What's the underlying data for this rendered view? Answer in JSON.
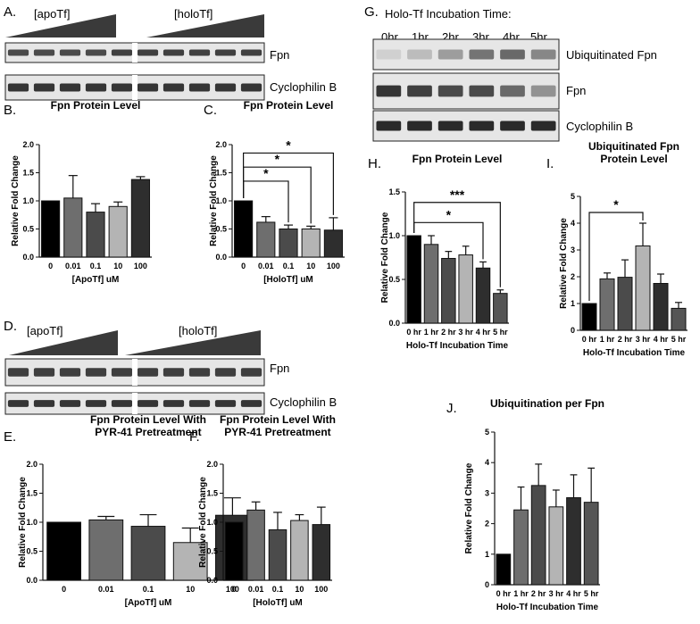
{
  "colors": {
    "bars": [
      "#000000",
      "#6e6e6e",
      "#4b4b4b",
      "#b4b4b4",
      "#2e2e2e",
      "#555555"
    ],
    "blot_bg": "#e6e6e6",
    "band": "#151515"
  },
  "blots": {
    "A": {
      "panel": "A.",
      "groups": [
        "[apoTf]",
        "[holoTf]"
      ],
      "rows": [
        {
          "label": "Fpn",
          "intensity": [
            0.75,
            0.75,
            0.75,
            0.75,
            0.8,
            0.8,
            0.8,
            0.8,
            0.8,
            0.8
          ]
        },
        {
          "label": "Cyclophilin B",
          "intensity": [
            0.85,
            0.85,
            0.85,
            0.85,
            0.85,
            0.85,
            0.85,
            0.85,
            0.85,
            0.85
          ]
        }
      ]
    },
    "D": {
      "panel": "D.",
      "groups": [
        "[apoTf]",
        "[holoTf]"
      ],
      "rows": [
        {
          "label": "Fpn",
          "intensity": [
            0.8,
            0.8,
            0.8,
            0.8,
            0.8,
            0.8,
            0.8,
            0.8,
            0.8,
            0.8
          ]
        },
        {
          "label": "Cyclophilin B",
          "intensity": [
            0.85,
            0.85,
            0.85,
            0.85,
            0.85,
            0.85,
            0.85,
            0.85,
            0.85,
            0.85
          ]
        }
      ]
    },
    "G": {
      "panel": "G.",
      "title": "Holo-Tf Incubation Time:",
      "lanes": [
        "0hr",
        "1hr",
        "2hr",
        "3hr",
        "4hr",
        "5hr"
      ],
      "rows": [
        {
          "label": "Ubiquitinated Fpn",
          "intensity": [
            0.1,
            0.2,
            0.35,
            0.55,
            0.6,
            0.45
          ]
        },
        {
          "label": "Fpn",
          "intensity": [
            0.85,
            0.8,
            0.75,
            0.75,
            0.6,
            0.4
          ]
        },
        {
          "label": "Cyclophilin B",
          "intensity": [
            0.9,
            0.9,
            0.9,
            0.9,
            0.9,
            0.9
          ]
        }
      ]
    }
  },
  "chart_data": [
    {
      "id": "B",
      "panel": "B.",
      "type": "bar",
      "title": [
        "Fpn Protein Level"
      ],
      "xlabel": [
        "[ApoTf] uM"
      ],
      "ylabel": "Relative Fold Change",
      "categories": [
        "0",
        "0.01",
        "0.1",
        "10",
        "100"
      ],
      "values": [
        1.0,
        1.05,
        0.8,
        0.9,
        1.38
      ],
      "errors": [
        0,
        0.4,
        0.15,
        0.08,
        0.05
      ],
      "ylim": [
        0,
        2.0
      ],
      "yticks": [
        "0.0",
        "0.5",
        "1.0",
        "1.5",
        "2.0"
      ],
      "sig": []
    },
    {
      "id": "C",
      "panel": "C.",
      "type": "bar",
      "title": [
        "Fpn Protein Level"
      ],
      "xlabel": [
        "[HoloTf] uM"
      ],
      "ylabel": "Relative Fold Change",
      "categories": [
        "0",
        "0.01",
        "0.1",
        "10",
        "100"
      ],
      "values": [
        1.0,
        0.62,
        0.5,
        0.5,
        0.48
      ],
      "errors": [
        0,
        0.1,
        0.07,
        0.05,
        0.22
      ],
      "ylim": [
        0,
        2.0
      ],
      "yticks": [
        "0.0",
        "0.5",
        "1.0",
        "1.5",
        "2.0"
      ],
      "sig": [
        {
          "from": 0,
          "to": 2,
          "y": 1.35,
          "label": "*"
        },
        {
          "from": 0,
          "to": 3,
          "y": 1.6,
          "label": "*"
        },
        {
          "from": 0,
          "to": 4,
          "y": 1.85,
          "label": "*"
        }
      ]
    },
    {
      "id": "E",
      "panel": "E.",
      "type": "bar",
      "title": [
        "Fpn Protein Level With",
        "PYR-41 Pretreatment"
      ],
      "xlabel": [
        "[ApoTf] uM"
      ],
      "ylabel": "Relative Fold Change",
      "categories": [
        "0",
        "0.01",
        "0.1",
        "10",
        "100"
      ],
      "values": [
        1.0,
        1.04,
        0.93,
        0.65,
        1.12
      ],
      "errors": [
        0,
        0.06,
        0.2,
        0.25,
        0.3
      ],
      "ylim": [
        0,
        2.0
      ],
      "yticks": [
        "0.0",
        "0.5",
        "1.0",
        "1.5",
        "2.0"
      ],
      "sig": []
    },
    {
      "id": "F",
      "panel": "F.",
      "type": "bar",
      "title": [
        "Fpn Protein Level With",
        "PYR-41 Pretreatment"
      ],
      "xlabel": [
        "[HoloTf] uM"
      ],
      "ylabel": "Relative Fold Change",
      "categories": [
        "0",
        "0.01",
        "0.1",
        "10",
        "100"
      ],
      "values": [
        1.0,
        1.21,
        0.87,
        1.03,
        0.96
      ],
      "errors": [
        0,
        0.14,
        0.3,
        0.1,
        0.3
      ],
      "ylim": [
        0,
        2.0
      ],
      "yticks": [
        "0.0",
        "0.5",
        "1.0",
        "1.5",
        "2.0"
      ],
      "sig": []
    },
    {
      "id": "H",
      "panel": "H.",
      "type": "bar",
      "title": [
        "Fpn Protein Level"
      ],
      "xlabel": [
        "Holo-Tf Incubation Time"
      ],
      "ylabel": "Relative Fold Change",
      "categories": [
        "0 hr",
        "1 hr",
        "2 hr",
        "3 hr",
        "4 hr",
        "5 hr"
      ],
      "values": [
        1.0,
        0.9,
        0.74,
        0.78,
        0.63,
        0.34
      ],
      "errors": [
        0,
        0.1,
        0.08,
        0.1,
        0.07,
        0.04
      ],
      "ylim": [
        0,
        1.5
      ],
      "yticks": [
        "0.0",
        "0.5",
        "1.0",
        "1.5"
      ],
      "sig": [
        {
          "from": 0,
          "to": 4,
          "y": 1.15,
          "label": "*"
        },
        {
          "from": 0,
          "to": 5,
          "y": 1.38,
          "label": "***"
        }
      ]
    },
    {
      "id": "I",
      "panel": "I.",
      "type": "bar",
      "title": [
        "Ubiquitinated Fpn",
        "Protein Level"
      ],
      "xlabel": [
        "Holo-Tf Incubation Time"
      ],
      "ylabel": "Relative Fold Change",
      "categories": [
        "0 hr",
        "1 hr",
        "2 hr",
        "3 hr",
        "4 hr",
        "5 hr"
      ],
      "values": [
        1.0,
        1.92,
        1.98,
        3.15,
        1.75,
        0.82
      ],
      "errors": [
        0,
        0.22,
        0.65,
        0.85,
        0.35,
        0.22
      ],
      "ylim": [
        0,
        5
      ],
      "yticks": [
        "0",
        "1",
        "2",
        "3",
        "4",
        "5"
      ],
      "sig": [
        {
          "from": 0,
          "to": 3,
          "y": 4.4,
          "label": "*"
        }
      ]
    },
    {
      "id": "J",
      "panel": "J.",
      "type": "bar",
      "title": [
        "Ubiquitination per Fpn"
      ],
      "xlabel": [
        "Holo-Tf Incubation Time"
      ],
      "ylabel": "Relative Fold Change",
      "categories": [
        "0 hr",
        "1 hr",
        "2 hr",
        "3 hr",
        "4 hr",
        "5 hr"
      ],
      "values": [
        1.0,
        2.45,
        3.25,
        2.55,
        2.85,
        2.7
      ],
      "errors": [
        0,
        0.75,
        0.7,
        0.55,
        0.75,
        1.12
      ],
      "ylim": [
        0,
        5
      ],
      "yticks": [
        "0",
        "1",
        "2",
        "3",
        "4",
        "5"
      ],
      "sig": []
    }
  ]
}
